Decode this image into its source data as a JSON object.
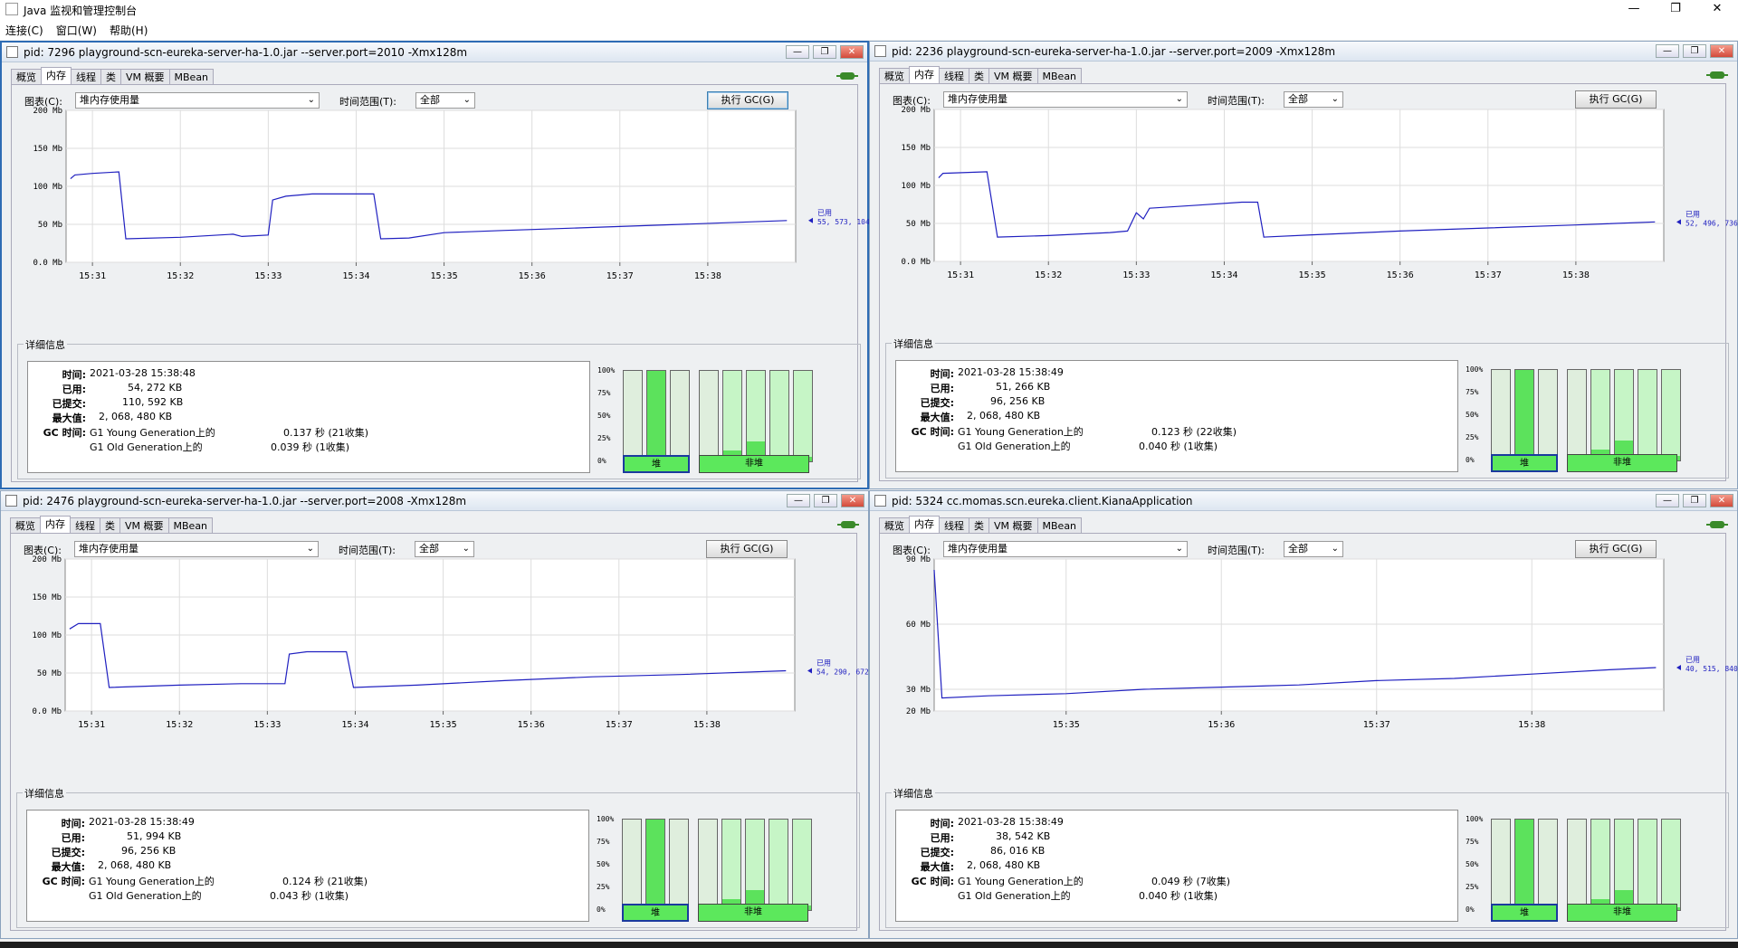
{
  "app": {
    "title": "Java 监视和管理控制台",
    "minimize": "—",
    "maximize": "❐",
    "close": "✕"
  },
  "menu": [
    "连接(C)",
    "窗口(W)",
    "帮助(H)"
  ],
  "tabs": [
    "概览",
    "内存",
    "线程",
    "类",
    "VM 概要",
    "MBean"
  ],
  "labels": {
    "chart": "图表(C):",
    "range": "时间范围(T):",
    "gc_button": "执行 GC(G)",
    "details": "详细信息",
    "time": "时间:",
    "used": "已用:",
    "committed": "已提交:",
    "max": "最大值:",
    "gc_time": "GC 时间:",
    "heap": "堆",
    "nonheap": "非堆",
    "used_short": "已用"
  },
  "percent_labels": [
    "100%",
    "75%",
    "50%",
    "25%",
    "0%"
  ],
  "windows": [
    {
      "title": "pid: 7296 playground-scn-eureka-server-ha-1.0.jar --server.port=2010 -Xmx128m",
      "active": true,
      "chart_select": "堆内存使用量",
      "range_select": "全部",
      "details": {
        "time": "2021-03-28 15:38:48",
        "used": "54, 272 KB",
        "committed": "110, 592 KB",
        "max": "2, 068, 480 KB",
        "gc_young": "G1 Young Generation上的",
        "gc_young_val": "0.137 秒 (21收集)",
        "gc_old": "G1 Old Generation上的",
        "gc_old_val": "0.039 秒 (1收集)"
      },
      "pools": {
        "heap": [
          0.0,
          1.0,
          0.0
        ],
        "nonheap": [
          0.0,
          0.12,
          0.22,
          0.0,
          0.05
        ]
      },
      "chart_data": {
        "type": "line",
        "ylim": [
          0,
          200
        ],
        "yticks": [
          "200 Mb",
          "150 Mb",
          "100 Mb",
          "50 Mb",
          "0.0 Mb"
        ],
        "xticks": [
          "15:31",
          "15:32",
          "15:33",
          "15:34",
          "15:35",
          "15:36",
          "15:37",
          "15:38"
        ],
        "xrange": [
          15.0,
          23.3
        ],
        "xtick_vals": [
          15.3,
          16.3,
          17.3,
          18.3,
          19.3,
          20.3,
          21.3,
          22.3
        ],
        "last_label": "已用",
        "last_value": "55, 573, 104",
        "series": [
          {
            "x": [
              15.05,
              15.1,
              15.3,
              15.6,
              15.68,
              16.3,
              16.9,
              17.0,
              17.3,
              17.35,
              17.5,
              17.8,
              18.3,
              18.5,
              18.58,
              18.9,
              19.3,
              20.0,
              21.0,
              22.0,
              23.2
            ],
            "y": [
              110,
              115,
              117,
              119,
              31,
              33,
              37,
              34,
              36,
              82,
              87,
              90,
              90,
              90,
              31,
              32,
              39,
              42,
              46,
              50,
              55
            ]
          }
        ]
      }
    },
    {
      "title": "pid: 2236 playground-scn-eureka-server-ha-1.0.jar --server.port=2009 -Xmx128m",
      "active": false,
      "chart_select": "堆内存使用量",
      "range_select": "全部",
      "details": {
        "time": "2021-03-28 15:38:49",
        "used": "51, 266 KB",
        "committed": "96, 256 KB",
        "max": "2, 068, 480 KB",
        "gc_young": "G1 Young Generation上的",
        "gc_young_val": "0.123 秒 (22收集)",
        "gc_old": "G1 Old Generation上的",
        "gc_old_val": "0.040 秒 (1收集)"
      },
      "pools": {
        "heap": [
          0.0,
          1.0,
          0.0
        ],
        "nonheap": [
          0.0,
          0.12,
          0.22,
          0.0,
          0.05
        ]
      },
      "chart_data": {
        "type": "line",
        "ylim": [
          0,
          200
        ],
        "yticks": [
          "200 Mb",
          "150 Mb",
          "100 Mb",
          "50 Mb",
          "0.0 Mb"
        ],
        "xticks": [
          "15:31",
          "15:32",
          "15:33",
          "15:34",
          "15:35",
          "15:36",
          "15:37",
          "15:38"
        ],
        "xrange": [
          15.0,
          23.3
        ],
        "xtick_vals": [
          15.3,
          16.3,
          17.3,
          18.3,
          19.3,
          20.3,
          21.3,
          22.3
        ],
        "last_label": "已用",
        "last_value": "52, 496, 736",
        "series": [
          {
            "x": [
              15.05,
              15.1,
              15.6,
              15.72,
              16.3,
              17.0,
              17.2,
              17.3,
              17.38,
              17.45,
              18.0,
              18.5,
              18.68,
              18.75,
              19.3,
              20.3,
              21.3,
              22.3,
              23.2
            ],
            "y": [
              110,
              116,
              118,
              32,
              34,
              38,
              40,
              64,
              56,
              70,
              74,
              78,
              78,
              32,
              35,
              40,
              44,
              48,
              52
            ]
          }
        ]
      }
    },
    {
      "title": "pid: 2476 playground-scn-eureka-server-ha-1.0.jar --server.port=2008 -Xmx128m",
      "active": false,
      "chart_select": "堆内存使用量",
      "range_select": "全部",
      "details": {
        "time": "2021-03-28 15:38:49",
        "used": "51, 994 KB",
        "committed": "96, 256 KB",
        "max": "2, 068, 480 KB",
        "gc_young": "G1 Young Generation上的",
        "gc_young_val": "0.124 秒 (21收集)",
        "gc_old": "G1 Old Generation上的",
        "gc_old_val": "0.043 秒 (1收集)"
      },
      "pools": {
        "heap": [
          0.0,
          1.0,
          0.0
        ],
        "nonheap": [
          0.0,
          0.12,
          0.22,
          0.0,
          0.05
        ]
      },
      "chart_data": {
        "type": "line",
        "ylim": [
          0,
          200
        ],
        "yticks": [
          "200 Mb",
          "150 Mb",
          "100 Mb",
          "50 Mb",
          "0.0 Mb"
        ],
        "xticks": [
          "15:31",
          "15:32",
          "15:33",
          "15:34",
          "15:35",
          "15:36",
          "15:37",
          "15:38"
        ],
        "xrange": [
          15.0,
          23.3
        ],
        "xtick_vals": [
          15.3,
          16.3,
          17.3,
          18.3,
          19.3,
          20.3,
          21.3,
          22.3
        ],
        "last_label": "已用",
        "last_value": "54, 290, 672",
        "series": [
          {
            "x": [
              15.05,
              15.15,
              15.25,
              15.4,
              15.5,
              16.3,
              17.0,
              17.3,
              17.5,
              17.55,
              17.75,
              18.0,
              18.2,
              18.28,
              19.0,
              20.0,
              21.0,
              22.0,
              23.2
            ],
            "y": [
              108,
              115,
              115,
              115,
              31,
              34,
              36,
              36,
              36,
              75,
              78,
              78,
              78,
              31,
              34,
              40,
              45,
              48,
              53
            ]
          }
        ]
      }
    },
    {
      "title": "pid: 5324 cc.momas.scn.eureka.client.KianaApplication",
      "active": false,
      "chart_select": "堆内存使用量",
      "range_select": "全部",
      "details": {
        "time": "2021-03-28 15:38:49",
        "used": "38, 542 KB",
        "committed": "86, 016 KB",
        "max": "2, 068, 480 KB",
        "gc_young": "G1 Young Generation上的",
        "gc_young_val": "0.049 秒 (7收集)",
        "gc_old": "G1 Old Generation上的",
        "gc_old_val": "0.040 秒 (1收集)"
      },
      "pools": {
        "heap": [
          0.0,
          1.0,
          0.0
        ],
        "nonheap": [
          0.0,
          0.12,
          0.22,
          0.0,
          0.03
        ]
      },
      "chart_data": {
        "type": "line",
        "ylim": [
          20,
          90
        ],
        "yticks": [
          "90 Mb",
          "60 Mb",
          "30 Mb",
          "20 Mb"
        ],
        "ytick_vals": [
          90,
          60,
          30,
          20
        ],
        "xticks": [
          "15:35",
          "15:36",
          "15:37",
          "15:38"
        ],
        "xrange": [
          34.15,
          38.85
        ],
        "xtick_vals": [
          35.0,
          36.0,
          37.0,
          38.0
        ],
        "last_label": "已用",
        "last_value": "40, 515, 840",
        "series": [
          {
            "x": [
              34.15,
              34.2,
              34.5,
              35.0,
              35.5,
              36.0,
              36.5,
              37.0,
              37.5,
              38.0,
              38.5,
              38.8
            ],
            "y": [
              85,
              26,
              27,
              28,
              30,
              31,
              32,
              34,
              35,
              37,
              39,
              40
            ]
          }
        ]
      }
    }
  ]
}
